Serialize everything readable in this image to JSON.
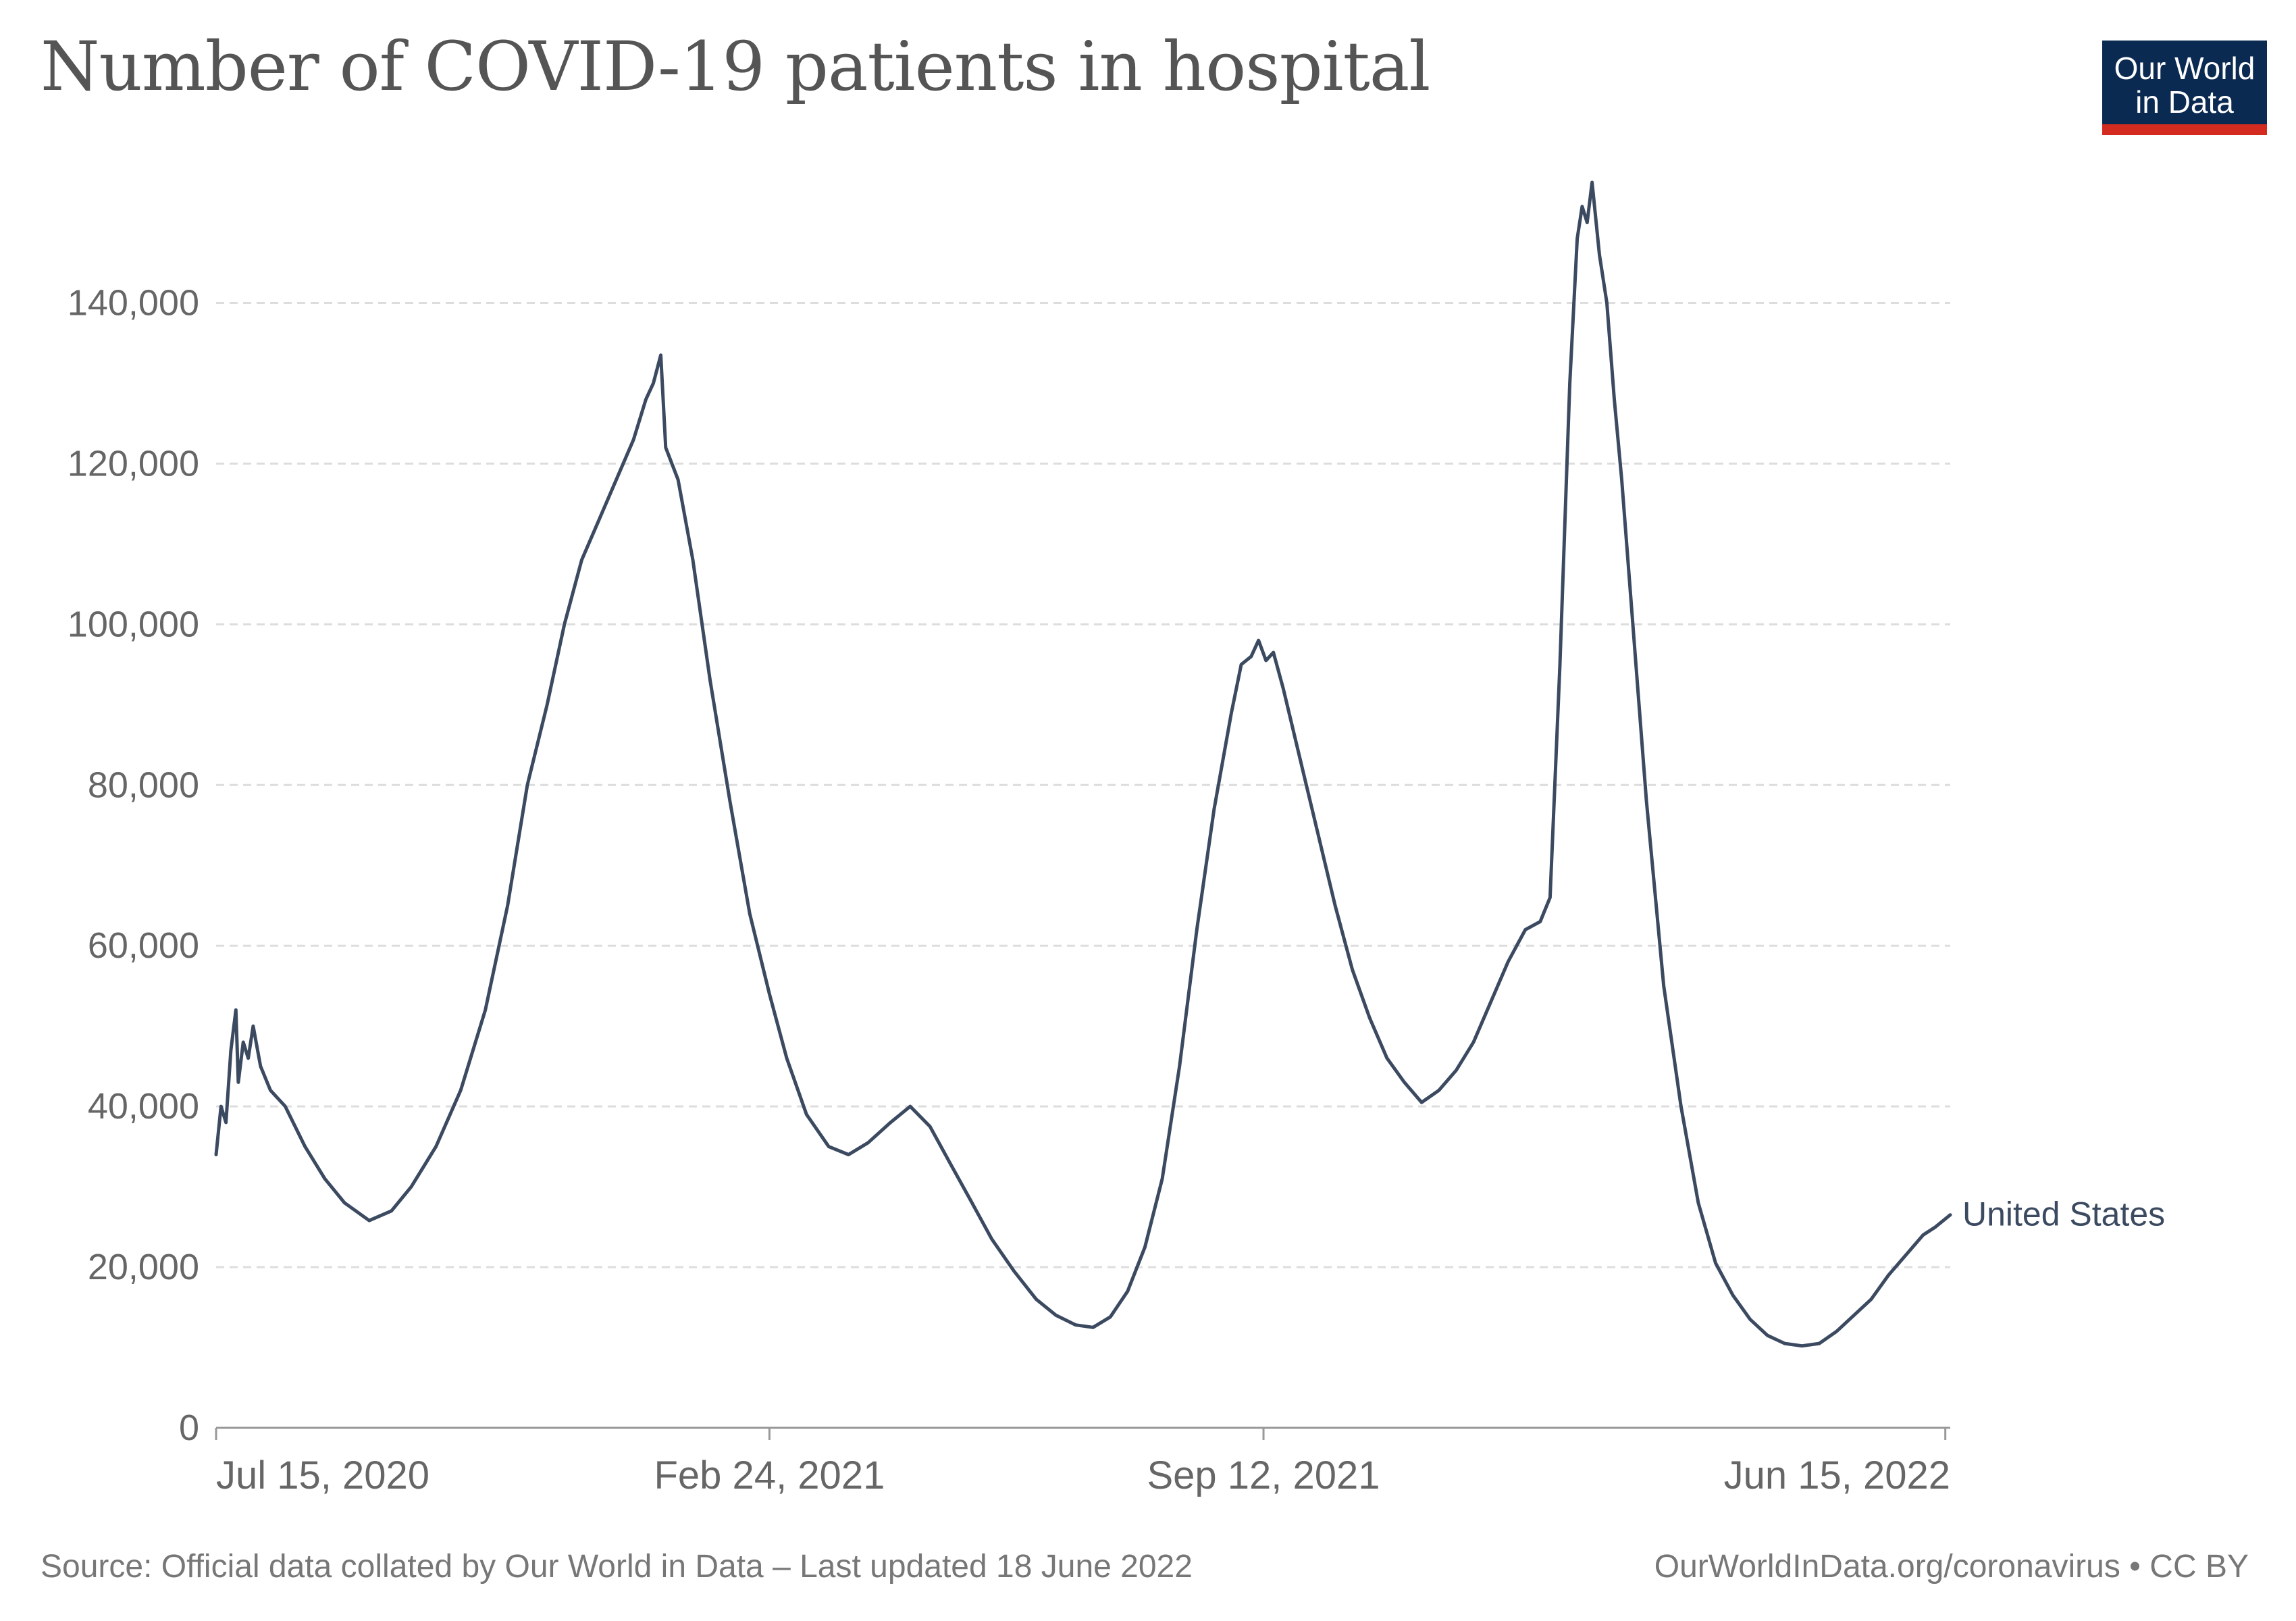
{
  "title": "Number of COVID-19 patients in hospital",
  "logo": {
    "line1": "Our World",
    "line2": "in Data"
  },
  "footer": {
    "source": "Source: Official data collated by Our World in Data – Last updated 18 June 2022",
    "link": "OurWorldInData.org/coronavirus • CC BY"
  },
  "colors": {
    "line": "#3b4a60",
    "grid": "#dddddd",
    "axis": "#999999",
    "text": "#666666"
  },
  "chart_data": {
    "type": "line",
    "title": "Number of COVID-19 patients in hospital",
    "xlabel": "",
    "ylabel": "",
    "xlim": [
      "2020-07-15",
      "2022-06-17"
    ],
    "ylim": [
      0,
      155000
    ],
    "yticks": [
      0,
      20000,
      40000,
      60000,
      80000,
      100000,
      120000,
      140000
    ],
    "ytick_labels": [
      "0",
      "20,000",
      "40,000",
      "60,000",
      "80,000",
      "100,000",
      "120,000",
      "140,000"
    ],
    "xticks": [
      "2020-07-15",
      "2021-02-24",
      "2021-09-12",
      "2022-06-15"
    ],
    "xtick_labels": [
      "Jul 15, 2020",
      "Feb 24, 2021",
      "Sep 12, 2021",
      "Jun 15, 2022"
    ],
    "grid": true,
    "legend": "line-end label",
    "series": [
      {
        "name": "United States",
        "color": "#3b4a60",
        "points": [
          [
            "2020-07-15",
            34000
          ],
          [
            "2020-07-17",
            40000
          ],
          [
            "2020-07-19",
            38000
          ],
          [
            "2020-07-21",
            47000
          ],
          [
            "2020-07-23",
            52000
          ],
          [
            "2020-07-24",
            43000
          ],
          [
            "2020-07-26",
            48000
          ],
          [
            "2020-07-28",
            46000
          ],
          [
            "2020-07-30",
            50000
          ],
          [
            "2020-08-02",
            45000
          ],
          [
            "2020-08-06",
            42000
          ],
          [
            "2020-08-12",
            40000
          ],
          [
            "2020-08-20",
            35000
          ],
          [
            "2020-08-28",
            31000
          ],
          [
            "2020-09-05",
            28000
          ],
          [
            "2020-09-15",
            25800
          ],
          [
            "2020-09-24",
            27000
          ],
          [
            "2020-10-02",
            30000
          ],
          [
            "2020-10-12",
            35000
          ],
          [
            "2020-10-22",
            42000
          ],
          [
            "2020-11-01",
            52000
          ],
          [
            "2020-11-10",
            65000
          ],
          [
            "2020-11-18",
            80000
          ],
          [
            "2020-11-26",
            90000
          ],
          [
            "2020-12-03",
            100000
          ],
          [
            "2020-12-10",
            108000
          ],
          [
            "2020-12-17",
            113000
          ],
          [
            "2020-12-24",
            118000
          ],
          [
            "2020-12-31",
            123000
          ],
          [
            "2021-01-05",
            128000
          ],
          [
            "2021-01-08",
            130000
          ],
          [
            "2021-01-11",
            133500
          ],
          [
            "2021-01-13",
            122000
          ],
          [
            "2021-01-18",
            118000
          ],
          [
            "2021-01-24",
            108000
          ],
          [
            "2021-01-31",
            93000
          ],
          [
            "2021-02-08",
            78000
          ],
          [
            "2021-02-16",
            64000
          ],
          [
            "2021-02-24",
            54000
          ],
          [
            "2021-03-03",
            46000
          ],
          [
            "2021-03-11",
            39000
          ],
          [
            "2021-03-20",
            35000
          ],
          [
            "2021-03-28",
            34000
          ],
          [
            "2021-04-05",
            35500
          ],
          [
            "2021-04-14",
            38000
          ],
          [
            "2021-04-22",
            40000
          ],
          [
            "2021-04-30",
            37500
          ],
          [
            "2021-05-08",
            33000
          ],
          [
            "2021-05-17",
            28000
          ],
          [
            "2021-05-25",
            23500
          ],
          [
            "2021-06-03",
            19500
          ],
          [
            "2021-06-12",
            16000
          ],
          [
            "2021-06-20",
            14000
          ],
          [
            "2021-06-28",
            12800
          ],
          [
            "2021-07-05",
            12500
          ],
          [
            "2021-07-12",
            13800
          ],
          [
            "2021-07-19",
            17000
          ],
          [
            "2021-07-26",
            22500
          ],
          [
            "2021-08-02",
            31000
          ],
          [
            "2021-08-09",
            45000
          ],
          [
            "2021-08-16",
            62000
          ],
          [
            "2021-08-23",
            77000
          ],
          [
            "2021-08-30",
            89000
          ],
          [
            "2021-09-03",
            95000
          ],
          [
            "2021-09-07",
            96000
          ],
          [
            "2021-09-10",
            98000
          ],
          [
            "2021-09-13",
            95500
          ],
          [
            "2021-09-16",
            96500
          ],
          [
            "2021-09-20",
            92000
          ],
          [
            "2021-09-27",
            83000
          ],
          [
            "2021-10-04",
            74000
          ],
          [
            "2021-10-11",
            65000
          ],
          [
            "2021-10-18",
            57000
          ],
          [
            "2021-10-25",
            51000
          ],
          [
            "2021-11-01",
            46000
          ],
          [
            "2021-11-08",
            43000
          ],
          [
            "2021-11-15",
            40500
          ],
          [
            "2021-11-22",
            42000
          ],
          [
            "2021-11-29",
            44500
          ],
          [
            "2021-12-06",
            48000
          ],
          [
            "2021-12-13",
            53000
          ],
          [
            "2021-12-20",
            58000
          ],
          [
            "2021-12-27",
            62000
          ],
          [
            "2022-01-02",
            63000
          ],
          [
            "2022-01-06",
            66000
          ],
          [
            "2022-01-10",
            95000
          ],
          [
            "2022-01-14",
            130000
          ],
          [
            "2022-01-17",
            148000
          ],
          [
            "2022-01-19",
            152000
          ],
          [
            "2022-01-21",
            150000
          ],
          [
            "2022-01-23",
            155000
          ],
          [
            "2022-01-26",
            146000
          ],
          [
            "2022-01-29",
            140000
          ],
          [
            "2022-02-01",
            128000
          ],
          [
            "2022-02-04",
            118000
          ],
          [
            "2022-02-09",
            98000
          ],
          [
            "2022-02-14",
            78000
          ],
          [
            "2022-02-21",
            55000
          ],
          [
            "2022-02-28",
            40000
          ],
          [
            "2022-03-07",
            28000
          ],
          [
            "2022-03-14",
            20500
          ],
          [
            "2022-03-21",
            16500
          ],
          [
            "2022-03-28",
            13500
          ],
          [
            "2022-04-04",
            11500
          ],
          [
            "2022-04-11",
            10500
          ],
          [
            "2022-04-18",
            10200
          ],
          [
            "2022-04-25",
            10500
          ],
          [
            "2022-05-02",
            12000
          ],
          [
            "2022-05-09",
            14000
          ],
          [
            "2022-05-16",
            16000
          ],
          [
            "2022-05-23",
            19000
          ],
          [
            "2022-05-30",
            21500
          ],
          [
            "2022-06-06",
            24000
          ],
          [
            "2022-06-11",
            25000
          ],
          [
            "2022-06-17",
            26500
          ]
        ]
      }
    ]
  }
}
